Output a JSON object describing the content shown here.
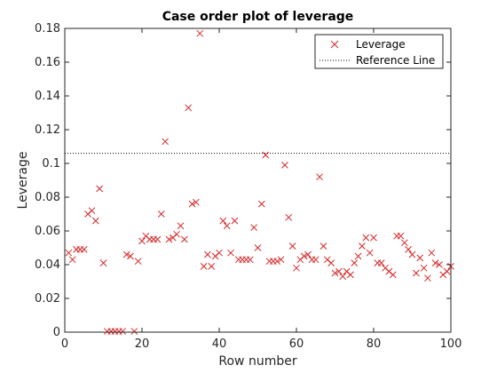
{
  "chart_data": {
    "type": "scatter",
    "title": "Case order plot of leverage",
    "xlabel": "Row number",
    "ylabel": "Leverage",
    "xlim": [
      0,
      100
    ],
    "ylim": [
      0,
      0.18
    ],
    "xticks": [
      0,
      20,
      40,
      60,
      80,
      100
    ],
    "yticks": [
      0,
      0.02,
      0.04,
      0.06,
      0.08,
      0.1,
      0.12,
      0.14,
      0.16,
      0.18
    ],
    "xtick_labels": [
      "0",
      "20",
      "40",
      "60",
      "80",
      "100"
    ],
    "ytick_labels": [
      "0",
      "0.02",
      "0.04",
      "0.06",
      "0.08",
      "0.1",
      "0.12",
      "0.14",
      "0.16",
      "0.18"
    ],
    "grid": false,
    "legend": {
      "placement": "top-right",
      "entries": [
        "Leverage",
        "Reference Line"
      ]
    },
    "series": [
      {
        "name": "Leverage",
        "marker": "x",
        "color": "#d62728",
        "x": [
          1,
          2,
          3,
          4,
          5,
          6,
          7,
          8,
          9,
          10,
          11,
          12,
          13,
          14,
          15,
          16,
          17,
          18,
          19,
          20,
          21,
          22,
          23,
          24,
          25,
          26,
          27,
          28,
          29,
          30,
          31,
          32,
          33,
          34,
          35,
          36,
          37,
          38,
          39,
          40,
          41,
          42,
          43,
          44,
          45,
          46,
          47,
          48,
          49,
          50,
          51,
          52,
          53,
          54,
          55,
          56,
          57,
          58,
          59,
          60,
          61,
          62,
          63,
          64,
          65,
          66,
          67,
          68,
          69,
          70,
          71,
          72,
          73,
          74,
          75,
          76,
          77,
          78,
          79,
          80,
          81,
          82,
          83,
          84,
          85,
          86,
          87,
          88,
          89,
          90,
          91,
          92,
          93,
          94,
          95,
          96,
          97,
          98,
          99,
          100
        ],
        "y": [
          0.047,
          0.043,
          0.049,
          0.049,
          0.049,
          0.07,
          0.072,
          0.066,
          0.085,
          0.041,
          0.0005,
          0.0005,
          0.0005,
          0.0005,
          0.0005,
          0.046,
          0.045,
          0.0005,
          0.042,
          0.054,
          0.057,
          0.055,
          0.055,
          0.055,
          0.07,
          0.113,
          0.055,
          0.056,
          0.058,
          0.063,
          0.055,
          0.133,
          0.076,
          0.077,
          0.177,
          0.039,
          0.046,
          0.039,
          0.045,
          0.047,
          0.066,
          0.063,
          0.047,
          0.066,
          0.043,
          0.043,
          0.043,
          0.043,
          0.062,
          0.05,
          0.076,
          0.105,
          0.042,
          0.042,
          0.042,
          0.043,
          0.099,
          0.068,
          0.051,
          0.038,
          0.043,
          0.045,
          0.046,
          0.043,
          0.043,
          0.092,
          0.051,
          0.043,
          0.041,
          0.035,
          0.036,
          0.033,
          0.036,
          0.034,
          0.041,
          0.045,
          0.051,
          0.056,
          0.047,
          0.056,
          0.041,
          0.041,
          0.038,
          0.036,
          0.034,
          0.057,
          0.057,
          0.053,
          0.049,
          0.046,
          0.035,
          0.044,
          0.038,
          0.032,
          0.047,
          0.041,
          0.04,
          0.034,
          0.036,
          0.039
        ]
      },
      {
        "name": "Reference Line",
        "line_style": "dotted",
        "color": "#000000",
        "y_constant": 0.106
      }
    ]
  }
}
